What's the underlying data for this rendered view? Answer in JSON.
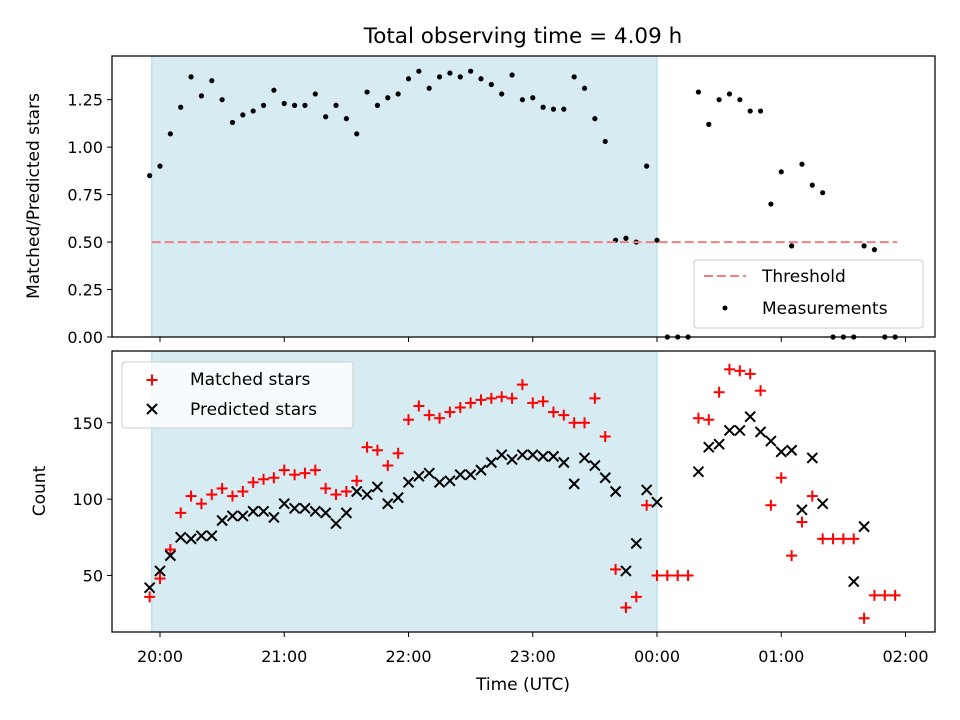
{
  "chart_data": [
    {
      "type": "scatter",
      "title": "Total observing time = 4.09 h",
      "xlabel": "",
      "ylabel": "Matched/Predicted stars",
      "ylim": [
        0,
        1.48
      ],
      "yticks": [
        "0.00",
        "0.25",
        "0.50",
        "0.75",
        "1.00",
        "1.25"
      ],
      "shaded_interval": [
        "19:56",
        "00:00"
      ],
      "shade_color": "#add8e6",
      "threshold": {
        "name": "Threshold",
        "value": 0.5,
        "from": "19:56",
        "to": "01:56",
        "color": "#f08080"
      },
      "legend_position": "lower right",
      "series": [
        {
          "name": "Measurements",
          "marker": "dot",
          "color": "#000000",
          "x": [
            "19:55",
            "20:00",
            "20:05",
            "20:10",
            "20:15",
            "20:20",
            "20:25",
            "20:30",
            "20:35",
            "20:40",
            "20:45",
            "20:50",
            "20:55",
            "21:00",
            "21:05",
            "21:10",
            "21:15",
            "21:20",
            "21:25",
            "21:30",
            "21:35",
            "21:40",
            "21:45",
            "21:50",
            "21:55",
            "22:00",
            "22:05",
            "22:10",
            "22:15",
            "22:20",
            "22:25",
            "22:30",
            "22:35",
            "22:40",
            "22:45",
            "22:50",
            "22:55",
            "23:00",
            "23:05",
            "23:10",
            "23:15",
            "23:20",
            "23:25",
            "23:30",
            "23:35",
            "23:40",
            "23:45",
            "23:50",
            "23:55",
            "00:00",
            "00:05",
            "00:10",
            "00:15",
            "00:20",
            "00:25",
            "00:30",
            "00:35",
            "00:40",
            "00:45",
            "00:50",
            "00:55",
            "01:00",
            "01:05",
            "01:10",
            "01:15",
            "01:20",
            "01:25",
            "01:30",
            "01:35",
            "01:40",
            "01:45",
            "01:50",
            "01:55"
          ],
          "y": [
            0.85,
            0.9,
            1.07,
            1.21,
            1.37,
            1.27,
            1.35,
            1.25,
            1.13,
            1.17,
            1.19,
            1.22,
            1.3,
            1.23,
            1.22,
            1.22,
            1.28,
            1.16,
            1.22,
            1.15,
            1.07,
            1.29,
            1.22,
            1.26,
            1.28,
            1.36,
            1.4,
            1.31,
            1.37,
            1.39,
            1.37,
            1.4,
            1.36,
            1.33,
            1.28,
            1.38,
            1.25,
            1.26,
            1.21,
            1.2,
            1.2,
            1.37,
            1.31,
            1.15,
            1.03,
            0.51,
            0.52,
            0.5,
            0.9,
            0.51,
            0.0,
            0.0,
            0.0,
            1.29,
            1.12,
            1.25,
            1.28,
            1.25,
            1.19,
            1.19,
            0.7,
            0.87,
            0.48,
            0.91,
            0.8,
            0.76,
            0.0,
            0.0,
            0.0,
            0.48,
            0.46,
            0.0,
            0.0
          ]
        }
      ]
    },
    {
      "type": "scatter",
      "title": "",
      "xlabel": "Time (UTC)",
      "ylabel": "Count",
      "ylim": [
        13,
        197
      ],
      "yticks": [
        "50",
        "100",
        "150"
      ],
      "xticks": [
        "20:00",
        "21:00",
        "22:00",
        "23:00",
        "00:00",
        "01:00",
        "02:00"
      ],
      "shaded_interval": [
        "19:56",
        "00:00"
      ],
      "shade_color": "#add8e6",
      "legend_position": "upper left",
      "series": [
        {
          "name": "Matched stars",
          "marker": "plus",
          "color": "#ff0000",
          "x": [
            "19:55",
            "20:00",
            "20:05",
            "20:10",
            "20:15",
            "20:20",
            "20:25",
            "20:30",
            "20:35",
            "20:40",
            "20:45",
            "20:50",
            "20:55",
            "21:00",
            "21:05",
            "21:10",
            "21:15",
            "21:20",
            "21:25",
            "21:30",
            "21:35",
            "21:40",
            "21:45",
            "21:50",
            "21:55",
            "22:00",
            "22:05",
            "22:10",
            "22:15",
            "22:20",
            "22:25",
            "22:30",
            "22:35",
            "22:40",
            "22:45",
            "22:50",
            "22:55",
            "23:00",
            "23:05",
            "23:10",
            "23:15",
            "23:20",
            "23:25",
            "23:30",
            "23:35",
            "23:40",
            "23:45",
            "23:50",
            "23:55",
            "00:00",
            "00:05",
            "00:10",
            "00:15",
            "00:20",
            "00:25",
            "00:30",
            "00:35",
            "00:40",
            "00:45",
            "00:50",
            "00:55",
            "01:00",
            "01:05",
            "01:10",
            "01:15",
            "01:20",
            "01:25",
            "01:30",
            "01:35",
            "01:40",
            "01:45",
            "01:50",
            "01:55"
          ],
          "y": [
            36,
            48,
            67,
            91,
            102,
            97,
            103,
            107,
            102,
            105,
            111,
            113,
            114,
            119,
            116,
            117,
            119,
            107,
            103,
            105,
            112,
            134,
            132,
            122,
            130,
            152,
            161,
            155,
            153,
            157,
            160,
            163,
            165,
            166,
            167,
            166,
            175,
            163,
            164,
            157,
            155,
            150,
            150,
            166,
            141,
            54,
            29,
            36,
            96,
            50,
            50,
            50,
            50,
            153,
            152,
            170,
            185,
            184,
            182,
            171,
            96,
            114,
            63,
            85,
            102,
            74,
            74,
            74,
            74,
            22,
            37,
            37,
            37
          ]
        },
        {
          "name": "Predicted stars",
          "marker": "x",
          "color": "#000000",
          "x": [
            "19:55",
            "20:00",
            "20:05",
            "20:10",
            "20:15",
            "20:20",
            "20:25",
            "20:30",
            "20:35",
            "20:40",
            "20:45",
            "20:50",
            "20:55",
            "21:00",
            "21:05",
            "21:10",
            "21:15",
            "21:20",
            "21:25",
            "21:30",
            "21:35",
            "21:40",
            "21:45",
            "21:50",
            "21:55",
            "22:00",
            "22:05",
            "22:10",
            "22:15",
            "22:20",
            "22:25",
            "22:30",
            "22:35",
            "22:40",
            "22:45",
            "22:50",
            "22:55",
            "23:00",
            "23:05",
            "23:10",
            "23:15",
            "23:20",
            "23:25",
            "23:30",
            "23:35",
            "23:40",
            "23:45",
            "23:50",
            "23:55",
            "00:00",
            "00:20",
            "00:25",
            "00:30",
            "00:35",
            "00:40",
            "00:45",
            "00:50",
            "00:55",
            "01:00",
            "01:05",
            "01:10",
            "01:15",
            "01:20",
            "01:35",
            "01:40"
          ],
          "y": [
            42,
            53,
            63,
            75,
            74,
            76,
            76,
            86,
            89,
            89,
            92,
            92,
            88,
            97,
            94,
            94,
            92,
            91,
            84,
            91,
            105,
            103,
            108,
            97,
            101,
            111,
            115,
            117,
            111,
            112,
            116,
            116,
            119,
            124,
            129,
            126,
            129,
            129,
            128,
            128,
            124,
            110,
            127,
            122,
            114,
            105,
            53,
            71,
            106,
            98,
            118,
            134,
            136,
            145,
            145,
            154,
            144,
            138,
            131,
            132,
            93,
            127,
            97,
            46,
            82
          ]
        }
      ]
    }
  ]
}
